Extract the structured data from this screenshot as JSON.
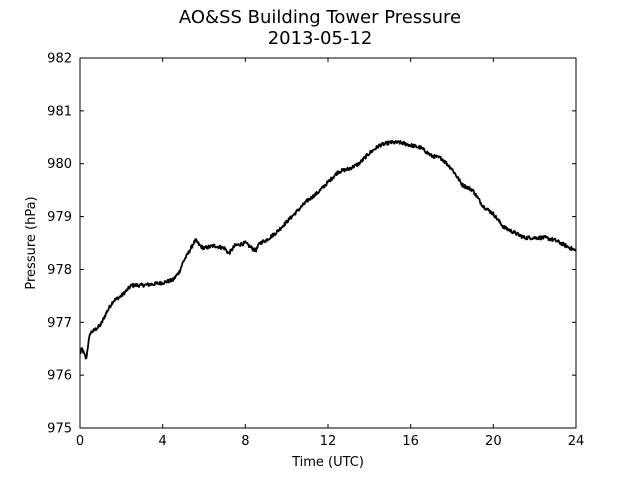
{
  "chart_data": {
    "type": "line",
    "title": "AO&SS Building Tower Pressure",
    "subtitle": "2013-05-12",
    "xlabel": "Time (UTC)",
    "ylabel": "Pressure (hPa)",
    "xlim": [
      0,
      24
    ],
    "ylim": [
      975,
      982
    ],
    "xticks": [
      0,
      4,
      8,
      12,
      16,
      20,
      24
    ],
    "yticks": [
      975,
      976,
      977,
      978,
      979,
      980,
      981,
      982
    ],
    "grid": false,
    "line_color": "#000000",
    "series": [
      {
        "x": [
          0,
          0.1,
          0.2,
          0.3,
          0.4,
          0.5,
          0.7,
          1.0,
          1.3,
          1.6,
          2.0,
          2.5,
          3.0,
          3.5,
          4.0,
          4.5,
          4.8,
          5.0,
          5.3,
          5.5,
          5.6,
          5.8,
          6.0,
          6.5,
          7.0,
          7.2,
          7.5,
          8.0,
          8.5,
          8.7,
          9.0,
          9.5,
          10.0,
          10.5,
          11.0,
          11.5,
          12.0,
          12.5,
          13.0,
          13.5,
          14.0,
          14.5,
          15.0,
          15.5,
          16.0,
          16.5,
          17.0,
          17.5,
          18.0,
          18.5,
          19.0,
          19.5,
          20.0,
          20.5,
          21.0,
          21.5,
          22.0,
          22.5,
          23.0,
          23.5,
          24.0
        ],
        "y": [
          976.4,
          976.5,
          976.4,
          976.3,
          976.6,
          976.8,
          976.85,
          976.95,
          977.2,
          977.4,
          977.5,
          977.7,
          977.7,
          977.72,
          977.75,
          977.8,
          977.95,
          978.15,
          978.35,
          978.5,
          978.55,
          978.45,
          978.4,
          978.45,
          978.4,
          978.3,
          978.45,
          978.5,
          978.35,
          978.5,
          978.55,
          978.7,
          978.9,
          979.1,
          979.3,
          979.45,
          979.65,
          979.85,
          979.9,
          980.0,
          980.2,
          980.35,
          980.4,
          980.4,
          980.35,
          980.3,
          980.15,
          980.1,
          979.9,
          979.6,
          979.5,
          979.2,
          979.05,
          978.8,
          978.7,
          978.6,
          978.6,
          978.6,
          978.55,
          978.45,
          978.35
        ]
      }
    ]
  }
}
